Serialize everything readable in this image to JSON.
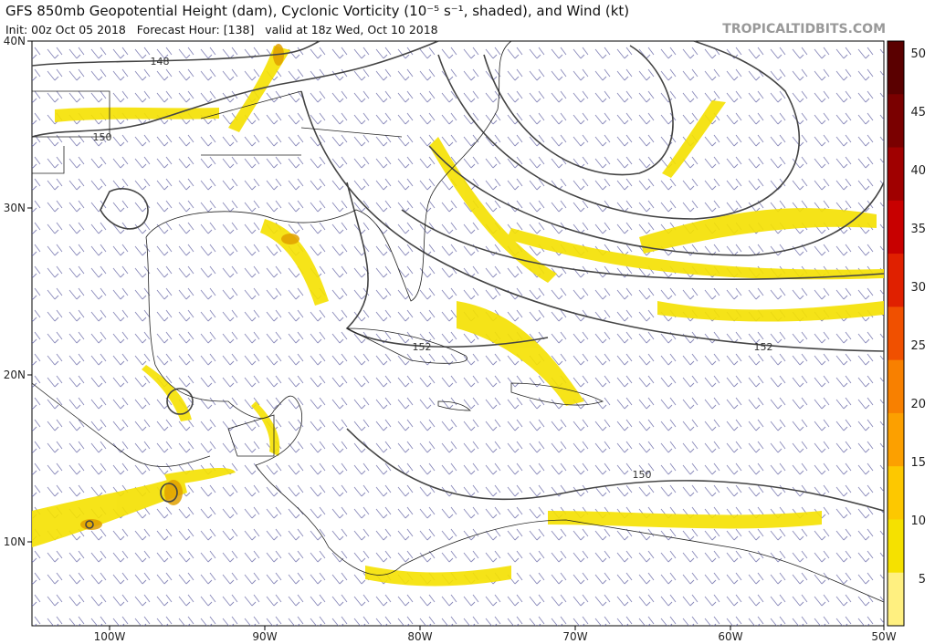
{
  "header": {
    "title": "GFS 850mb Geopotential Height (dam), Cyclonic Vorticity (10⁻⁵ s⁻¹, shaded), and Wind (kt)",
    "init": "Init: 00z Oct 05 2018   Forecast Hour: [138]   valid at 18z Wed, Oct 10 2018",
    "site": "TROPICALTIDBITS.COM"
  },
  "map": {
    "lat_labels": [
      "40N",
      "30N",
      "20N",
      "10N"
    ],
    "lon_labels": [
      "100W",
      "90W",
      "80W",
      "70W",
      "60W",
      "50W"
    ],
    "contour_labels": [
      "148",
      "150",
      "152",
      "152",
      "150"
    ]
  },
  "colorbar": {
    "labels": [
      50,
      45,
      40,
      35,
      30,
      25,
      20,
      15,
      10,
      5
    ]
  }
}
